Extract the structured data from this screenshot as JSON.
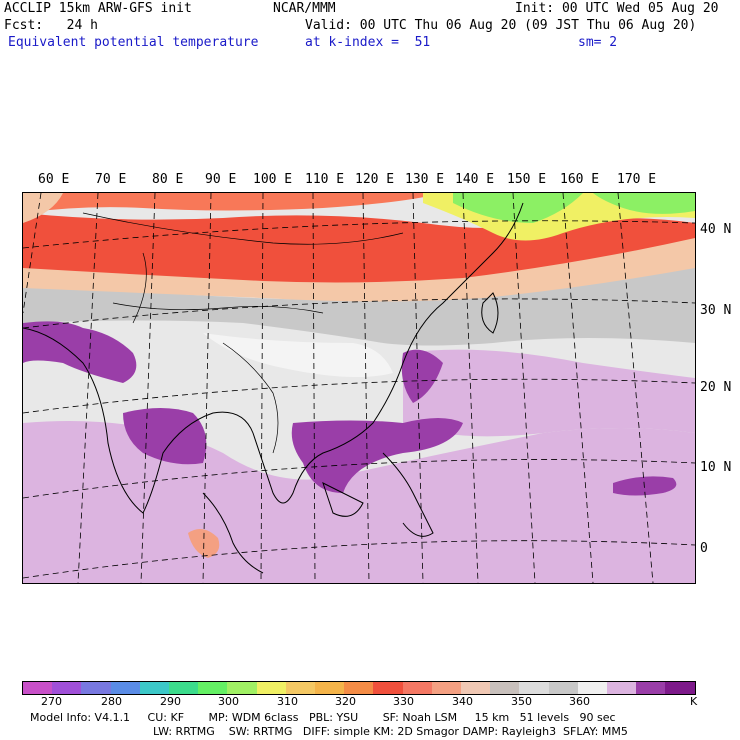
{
  "header": {
    "line1_left": "ACCLIP 15km ARW-GFS init",
    "line1_center": "NCAR/MMM",
    "line1_right": "Init: 00 UTC Wed 05 Aug 20",
    "line2_left": "Fcst:   24 h",
    "line2_right": "Valid: 00 UTC Thu 06 Aug 20 (09 JST Thu 06 Aug 20)",
    "line3_left": "Equivalent potential temperature",
    "line3_center": "at k-index =  51",
    "line3_right": "sm= 2"
  },
  "map": {
    "lon_labels": [
      "60 E",
      "70 E",
      "80 E",
      "90 E",
      "100 E",
      "110 E",
      "120 E",
      "130 E",
      "140 E",
      "150 E",
      "160 E",
      "170 E"
    ],
    "lat_labels": [
      "40 N",
      "30 N",
      "20 N",
      "10 N",
      "0"
    ],
    "colors": {
      "water": "#e0e0e0",
      "gray_light": "#c8c8c8",
      "lavender": "#dcb4e0",
      "purple": "#9a3ea8",
      "dark_purple": "#7d1a8a",
      "red": "#f0503c",
      "orange_red": "#f87858",
      "salmon": "#f4a082",
      "peach": "#f4c8a8",
      "yellow": "#f0f064",
      "green": "#8cf064",
      "white_patch": "#f4f4f4"
    }
  },
  "colorbar": {
    "colors": [
      "#c850c8",
      "#a050d8",
      "#7878e0",
      "#5a8ce6",
      "#3cc8c8",
      "#3cdc8c",
      "#64f064",
      "#a0f064",
      "#f0f064",
      "#f4c864",
      "#f4b44a",
      "#f48c46",
      "#f0503c",
      "#f47864",
      "#f4a082",
      "#f0c8b4",
      "#c8c0bc",
      "#dcdcdc",
      "#c8c8c8",
      "#f0f0f0",
      "#dcb4e0",
      "#9a3ea8",
      "#7d1a8a"
    ],
    "tick_labels": [
      "270",
      "280",
      "290",
      "300",
      "310",
      "320",
      "330",
      "340",
      "350",
      "360",
      "K"
    ]
  },
  "footer": {
    "line1": "Model Info: V4.1.1     CU: KF       MP: WDM 6class   PBL: YSU       SF: Noah LSM     15 km   51 levels   90 sec",
    "line2": "LW: RRTMG    SW: RRTMG   DIFF: simple KM: 2D Smagor DAMP: Rayleigh3  SFLAY: MM5"
  }
}
